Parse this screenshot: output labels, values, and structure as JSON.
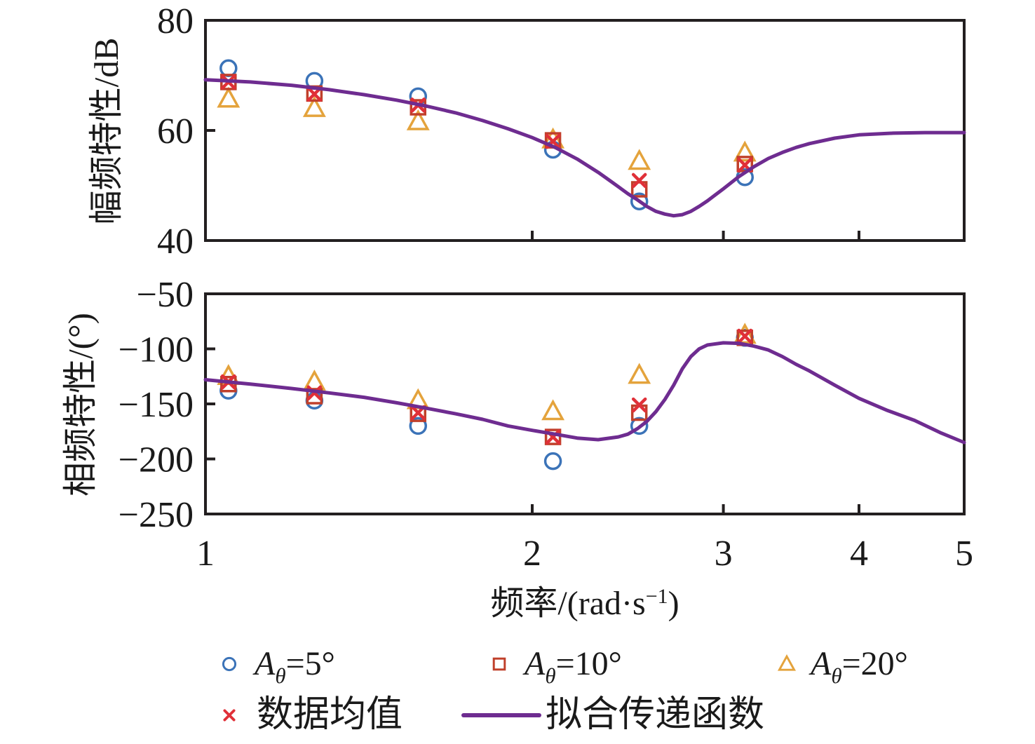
{
  "figure": {
    "background": "#ffffff",
    "axis_color": "#231f20",
    "text_color": "#1a1a1a"
  },
  "axes": {
    "y_label_magnitude": "幅频特性/dB",
    "y_label_phase": "相频特性/(°)",
    "x_label": {
      "prefix": "频率/(rad·s",
      "sup": "−1",
      "suffix": ")"
    }
  },
  "chart_data": [
    {
      "type": "scatter",
      "subplot": "magnitude",
      "ylabel": "幅频特性/dB",
      "xlabel": "频率/(rad·s−1)",
      "xscale": "log",
      "xlim": [
        1,
        5
      ],
      "ylim": [
        40,
        80
      ],
      "xticks": [
        1,
        2,
        3,
        4,
        5
      ],
      "xtick_labels": [
        "1",
        "2",
        "3",
        "4",
        "5"
      ],
      "xtick_labels_shown": false,
      "yticks": [
        40,
        60,
        80
      ],
      "ytick_labels": [
        "40",
        "60",
        "80"
      ],
      "grid": false,
      "x": [
        1.05,
        1.26,
        1.57,
        2.09,
        2.51,
        3.14
      ],
      "series": [
        {
          "name": "Aθ=5°",
          "marker": "circle",
          "color": "#3b73b8",
          "values": [
            71.3,
            69.0,
            66.2,
            56.5,
            47.1,
            51.5
          ]
        },
        {
          "name": "Aθ=10°",
          "marker": "square",
          "color": "#c0402b",
          "values": [
            68.8,
            66.7,
            64.2,
            58.2,
            49.3,
            53.9
          ]
        },
        {
          "name": "Aθ=20°",
          "marker": "triangle",
          "color": "#e4a33c",
          "values": [
            65.7,
            64.0,
            61.6,
            58.3,
            54.4,
            55.9
          ]
        },
        {
          "name": "数据均值",
          "marker": "x",
          "color": "#e03038",
          "values": [
            68.8,
            66.6,
            64.6,
            58.0,
            50.9,
            53.7
          ]
        }
      ],
      "fit_curve": {
        "name": "拟合传递函数",
        "color": "#6e2c90",
        "points": [
          [
            1.0,
            69.2
          ],
          [
            1.1,
            68.8
          ],
          [
            1.2,
            68.2
          ],
          [
            1.3,
            67.4
          ],
          [
            1.4,
            66.5
          ],
          [
            1.5,
            65.5
          ],
          [
            1.6,
            64.4
          ],
          [
            1.7,
            63.2
          ],
          [
            1.8,
            61.8
          ],
          [
            1.9,
            60.3
          ],
          [
            2.0,
            58.7
          ],
          [
            2.1,
            56.9
          ],
          [
            2.2,
            54.8
          ],
          [
            2.3,
            52.4
          ],
          [
            2.35,
            51.1
          ],
          [
            2.4,
            49.8
          ],
          [
            2.45,
            48.5
          ],
          [
            2.5,
            47.4
          ],
          [
            2.55,
            46.2
          ],
          [
            2.6,
            45.3
          ],
          [
            2.65,
            44.8
          ],
          [
            2.7,
            44.5
          ],
          [
            2.75,
            44.7
          ],
          [
            2.8,
            45.3
          ],
          [
            2.85,
            46.2
          ],
          [
            2.9,
            47.2
          ],
          [
            3.0,
            49.4
          ],
          [
            3.1,
            51.6
          ],
          [
            3.2,
            53.4
          ],
          [
            3.3,
            54.9
          ],
          [
            3.4,
            56.0
          ],
          [
            3.5,
            56.9
          ],
          [
            3.6,
            57.6
          ],
          [
            3.8,
            58.6
          ],
          [
            4.0,
            59.2
          ],
          [
            4.3,
            59.5
          ],
          [
            4.6,
            59.6
          ],
          [
            5.0,
            59.6
          ]
        ]
      }
    },
    {
      "type": "scatter",
      "subplot": "phase",
      "ylabel": "相频特性/(°)",
      "xlabel": "频率/(rad·s−1)",
      "xscale": "log",
      "xlim": [
        1,
        5
      ],
      "ylim": [
        -250,
        -50
      ],
      "xticks": [
        1,
        2,
        3,
        4,
        5
      ],
      "xtick_labels": [
        "1",
        "2",
        "3",
        "4",
        "5"
      ],
      "xtick_labels_shown": true,
      "yticks": [
        -250,
        -200,
        -150,
        -100,
        -50
      ],
      "ytick_labels": [
        "−250",
        "−200",
        "−150",
        "−100",
        "−50"
      ],
      "grid": false,
      "x": [
        1.05,
        1.26,
        1.57,
        2.09,
        2.51,
        3.14
      ],
      "series": [
        {
          "name": "Aθ=5°",
          "marker": "circle",
          "color": "#3b73b8",
          "values": [
            -138,
            -147,
            -170,
            -202,
            -170,
            -90
          ]
        },
        {
          "name": "Aθ=10°",
          "marker": "square",
          "color": "#c0402b",
          "values": [
            -132,
            -143,
            -159,
            -180,
            -158,
            -90
          ]
        },
        {
          "name": "Aθ=20°",
          "marker": "triangle",
          "color": "#e4a33c",
          "values": [
            -125,
            -130,
            -147,
            -157,
            -124,
            -87.5
          ]
        },
        {
          "name": "数据均值",
          "marker": "x",
          "color": "#e03038",
          "values": [
            -130,
            -140,
            -158,
            -180,
            -151,
            -88.5
          ]
        }
      ],
      "fit_curve": {
        "name": "拟合传递函数",
        "color": "#6e2c90",
        "points": [
          [
            1.0,
            -128
          ],
          [
            1.1,
            -132
          ],
          [
            1.2,
            -136
          ],
          [
            1.3,
            -140
          ],
          [
            1.4,
            -144
          ],
          [
            1.5,
            -149
          ],
          [
            1.6,
            -154
          ],
          [
            1.7,
            -159
          ],
          [
            1.8,
            -164
          ],
          [
            1.9,
            -170
          ],
          [
            2.0,
            -174
          ],
          [
            2.1,
            -177.5
          ],
          [
            2.2,
            -181
          ],
          [
            2.3,
            -182.5
          ],
          [
            2.4,
            -180
          ],
          [
            2.45,
            -177.5
          ],
          [
            2.5,
            -172.5
          ],
          [
            2.55,
            -166
          ],
          [
            2.6,
            -157
          ],
          [
            2.65,
            -146
          ],
          [
            2.7,
            -133
          ],
          [
            2.75,
            -118
          ],
          [
            2.8,
            -107
          ],
          [
            2.85,
            -100
          ],
          [
            2.9,
            -96.5
          ],
          [
            3.0,
            -94.5
          ],
          [
            3.1,
            -95
          ],
          [
            3.2,
            -97.5
          ],
          [
            3.3,
            -101
          ],
          [
            3.4,
            -107
          ],
          [
            3.5,
            -114
          ],
          [
            3.6,
            -120
          ],
          [
            3.8,
            -133
          ],
          [
            4.0,
            -145
          ],
          [
            4.25,
            -156
          ],
          [
            4.5,
            -165
          ],
          [
            4.75,
            -176
          ],
          [
            5.0,
            -185
          ]
        ]
      }
    }
  ],
  "legend": {
    "items": [
      {
        "marker": "circle",
        "color": "#3b73b8",
        "var": "A",
        "sub": "θ",
        "rest": "=5°"
      },
      {
        "marker": "square",
        "color": "#c0402b",
        "var": "A",
        "sub": "θ",
        "rest": "=10°"
      },
      {
        "marker": "triangle",
        "color": "#e4a33c",
        "var": "A",
        "sub": "θ",
        "rest": "=20°"
      },
      {
        "marker": "x",
        "color": "#e03038",
        "text": "数据均值"
      },
      {
        "marker": "line",
        "color": "#6e2c90",
        "text": "拟合传递函数"
      }
    ]
  }
}
